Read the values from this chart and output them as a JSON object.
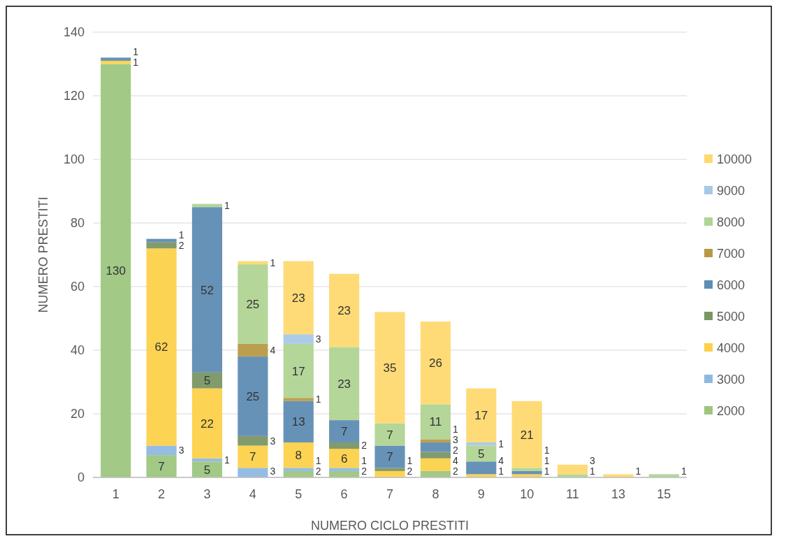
{
  "chart_data": {
    "type": "bar",
    "stacked": true,
    "xlabel": "NUMERO CICLO PRESTITI",
    "ylabel": "NUMERO PRESTITI",
    "categories": [
      "1",
      "2",
      "3",
      "4",
      "5",
      "6",
      "7",
      "8",
      "9",
      "10",
      "11",
      "13",
      "15"
    ],
    "series": [
      {
        "name": "2000",
        "color": "#9dc67f",
        "values": [
          130,
          7,
          5,
          null,
          2,
          2,
          null,
          2,
          null,
          null,
          null,
          null,
          null
        ]
      },
      {
        "name": "3000",
        "color": "#8fb8e1",
        "values": [
          null,
          3,
          1,
          3,
          1,
          1,
          null,
          null,
          null,
          null,
          null,
          null,
          null
        ]
      },
      {
        "name": "4000",
        "color": "#fdd14a",
        "values": [
          1,
          62,
          22,
          7,
          8,
          6,
          2,
          4,
          1,
          1,
          null,
          null,
          null
        ]
      },
      {
        "name": "5000",
        "color": "#7a9664",
        "values": [
          null,
          2,
          5,
          3,
          null,
          2,
          1,
          2,
          null,
          null,
          null,
          null,
          null
        ]
      },
      {
        "name": "6000",
        "color": "#5f8cb3",
        "values": [
          1,
          1,
          52,
          25,
          13,
          7,
          7,
          3,
          4,
          1,
          null,
          null,
          null
        ]
      },
      {
        "name": "7000",
        "color": "#b89a45",
        "values": [
          null,
          null,
          null,
          4,
          1,
          null,
          null,
          1,
          null,
          null,
          null,
          null,
          null
        ]
      },
      {
        "name": "8000",
        "color": "#b0d494",
        "values": [
          null,
          null,
          1,
          25,
          17,
          23,
          7,
          11,
          5,
          1,
          1,
          null,
          1
        ]
      },
      {
        "name": "9000",
        "color": "#a8c8e6",
        "values": [
          null,
          null,
          null,
          null,
          3,
          null,
          null,
          null,
          1,
          null,
          null,
          null,
          null
        ]
      },
      {
        "name": "10000",
        "color": "#fed96f",
        "values": [
          null,
          null,
          null,
          1,
          23,
          23,
          35,
          26,
          17,
          21,
          3,
          1,
          null
        ]
      }
    ],
    "ylim": [
      0,
      140
    ],
    "yticks": [
      0,
      20,
      40,
      60,
      80,
      100,
      120,
      140
    ],
    "grid": "y",
    "legend": "right",
    "data_labels": true
  }
}
